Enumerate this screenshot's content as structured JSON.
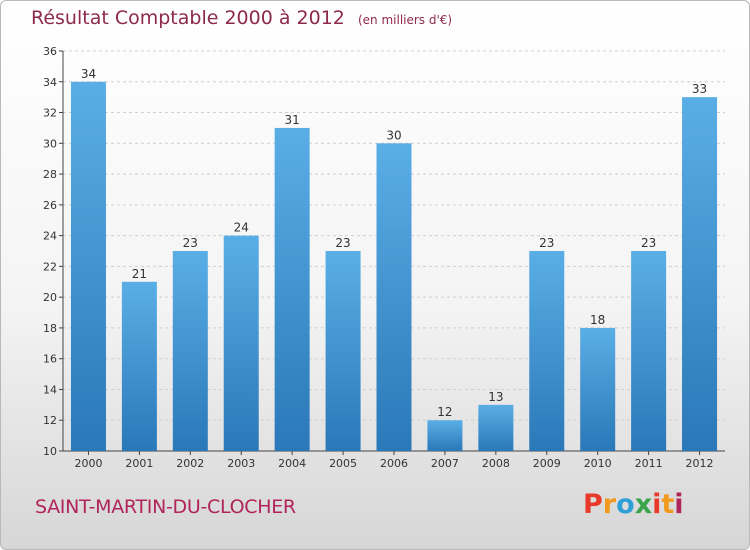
{
  "header": {
    "title": "Résultat Comptable 2000 à 2012",
    "unit": "(en milliers d'€)"
  },
  "footer": {
    "city": "SAINT-MARTIN-DU-CLOCHER",
    "logo_text": "Proxiti"
  },
  "colors": {
    "title": "#8e2a49",
    "bar_top": "#5aaee6",
    "bar_bottom": "#2a78b8",
    "logo": [
      "#e8392a",
      "#f29a1e",
      "#2f9fd8",
      "#3aa54b",
      "#e8392a",
      "#f29a1e",
      "#b0245a"
    ]
  },
  "chart_data": {
    "type": "bar",
    "categories": [
      "2000",
      "2001",
      "2002",
      "2003",
      "2004",
      "2005",
      "2006",
      "2007",
      "2008",
      "2009",
      "2010",
      "2011",
      "2012"
    ],
    "values": [
      34,
      21,
      23,
      24,
      31,
      23,
      30,
      12,
      13,
      23,
      18,
      23,
      33
    ],
    "ylim": [
      10,
      36
    ],
    "yticks": [
      10,
      12,
      14,
      16,
      18,
      20,
      22,
      24,
      26,
      28,
      30,
      32,
      34,
      36
    ],
    "grid": true,
    "data_labels": true
  }
}
